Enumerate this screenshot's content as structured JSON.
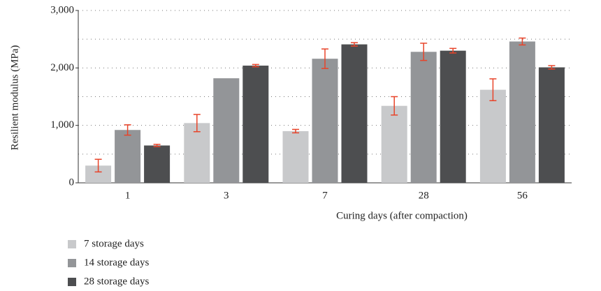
{
  "chart_data": {
    "type": "bar",
    "x_label": "Curing days (after compaction)",
    "y_label": "Resilient modulus (MPa)",
    "categories": [
      "1",
      "3",
      "7",
      "28",
      "56"
    ],
    "series": [
      {
        "name": "7 storage days",
        "color": "#c8c9cb",
        "values": [
          300,
          1040,
          900,
          1340,
          1620
        ],
        "errors": [
          110,
          150,
          30,
          160,
          190
        ]
      },
      {
        "name": "14 storage days",
        "color": "#939598",
        "values": [
          920,
          1820,
          2160,
          2280,
          2460
        ],
        "errors": [
          90,
          null,
          170,
          150,
          60
        ]
      },
      {
        "name": "28 storage days",
        "color": "#4d4e50",
        "values": [
          650,
          2040,
          2410,
          2300,
          2010
        ],
        "errors": [
          20,
          20,
          30,
          40,
          30
        ]
      }
    ],
    "error_color": "#e8442a",
    "ylim": [
      0,
      3000
    ],
    "yticks": [
      0,
      {
        "value": 1000,
        "label": "1,000"
      },
      {
        "value": 2000,
        "label": "2,000"
      },
      {
        "value": 3000,
        "label": "3,000"
      }
    ],
    "minor_grid": [
      500,
      1500,
      2500
    ],
    "grid": true,
    "legend": "bottom-left"
  }
}
